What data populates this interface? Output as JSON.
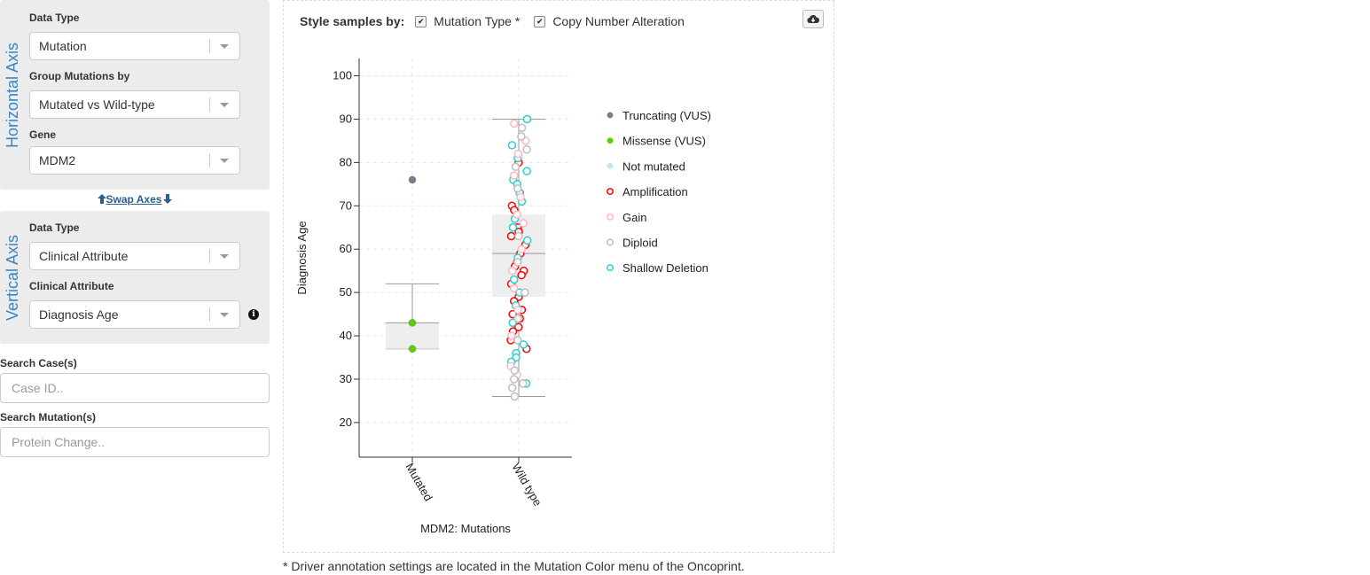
{
  "horizontal_axis": {
    "title": "Horizontal Axis",
    "data_type_label": "Data Type",
    "data_type_value": "Mutation",
    "group_label": "Group Mutations by",
    "group_value": "Mutated vs Wild-type",
    "gene_label": "Gene",
    "gene_value": "MDM2"
  },
  "swap_axes": "Swap Axes",
  "vertical_axis": {
    "title": "Vertical Axis",
    "data_type_label": "Data Type",
    "data_type_value": "Clinical Attribute",
    "attribute_label": "Clinical Attribute",
    "attribute_value": "Diagnosis Age",
    "info_icon": "info-circle-icon"
  },
  "search_cases": {
    "label": "Search Case(s)",
    "placeholder": "Case ID.."
  },
  "search_mutations": {
    "label": "Search Mutation(s)",
    "placeholder": "Protein Change.."
  },
  "style_bar": {
    "label": "Style samples by:",
    "options": [
      {
        "label": "Mutation Type *",
        "checked": true
      },
      {
        "label": "Copy Number Alteration",
        "checked": true
      }
    ]
  },
  "download_icon": "cloud-download-icon",
  "footnote": "* Driver annotation settings are located in the Mutation Color menu of the Oncoprint.",
  "colors": {
    "accent": "#3786c2",
    "link": "#2a5f8f"
  },
  "legend": [
    {
      "label": "Truncating (VUS)",
      "fill": "#708090",
      "stroke": "#708090",
      "filled": true
    },
    {
      "label": "Missense (VUS)",
      "fill": "#53d400",
      "stroke": "#53d400",
      "filled": true
    },
    {
      "label": "Not mutated",
      "fill": "#c1e5f5",
      "stroke": "#c1e5f5",
      "filled": true
    },
    {
      "label": "Amplification",
      "fill": "#ffffff",
      "stroke": "#ff0000",
      "filled": false
    },
    {
      "label": "Gain",
      "fill": "#ffffff",
      "stroke": "#ffb6c1",
      "filled": false
    },
    {
      "label": "Diploid",
      "fill": "#ffffff",
      "stroke": "#bebebe",
      "filled": false
    },
    {
      "label": "Shallow Deletion",
      "fill": "#ffffff",
      "stroke": "#2aced4",
      "filled": false
    }
  ],
  "chart_data": {
    "type": "box",
    "title": "",
    "xlabel": "MDM2: Mutations",
    "ylabel": "Diagnosis Age",
    "categories": [
      "Mutated",
      "Wild type"
    ],
    "ylim": [
      12,
      104
    ],
    "yticks": [
      20,
      30,
      40,
      50,
      60,
      70,
      80,
      90,
      100
    ],
    "grid": true,
    "legend_position": "right",
    "boxes": [
      {
        "category": "Mutated",
        "min": 37,
        "q1": 37,
        "median": 43,
        "q3": 43,
        "max": 52
      },
      {
        "category": "Wild type",
        "min": 26,
        "q1": 49,
        "median": 59,
        "q3": 68,
        "max": 90
      }
    ],
    "points": [
      {
        "category": "Mutated",
        "y": 76,
        "type": "Truncating (VUS)"
      },
      {
        "category": "Mutated",
        "y": 43,
        "type": "Missense (VUS)"
      },
      {
        "category": "Mutated",
        "y": 37,
        "type": "Missense (VUS)"
      },
      {
        "category": "Wild type",
        "y": 80,
        "type": "Amplification"
      },
      {
        "category": "Wild type",
        "y": 73,
        "type": "Amplification"
      },
      {
        "category": "Wild type",
        "y": 70,
        "type": "Amplification"
      },
      {
        "category": "Wild type",
        "y": 69,
        "type": "Amplification"
      },
      {
        "category": "Wild type",
        "y": 65,
        "type": "Amplification"
      },
      {
        "category": "Wild type",
        "y": 64,
        "type": "Amplification"
      },
      {
        "category": "Wild type",
        "y": 63,
        "type": "Amplification"
      },
      {
        "category": "Wild type",
        "y": 61,
        "type": "Amplification"
      },
      {
        "category": "Wild type",
        "y": 59,
        "type": "Amplification"
      },
      {
        "category": "Wild type",
        "y": 57,
        "type": "Amplification"
      },
      {
        "category": "Wild type",
        "y": 56,
        "type": "Amplification"
      },
      {
        "category": "Wild type",
        "y": 55,
        "type": "Amplification"
      },
      {
        "category": "Wild type",
        "y": 54,
        "type": "Amplification"
      },
      {
        "category": "Wild type",
        "y": 52,
        "type": "Amplification"
      },
      {
        "category": "Wild type",
        "y": 49,
        "type": "Amplification"
      },
      {
        "category": "Wild type",
        "y": 48,
        "type": "Amplification"
      },
      {
        "category": "Wild type",
        "y": 46,
        "type": "Amplification"
      },
      {
        "category": "Wild type",
        "y": 45,
        "type": "Amplification"
      },
      {
        "category": "Wild type",
        "y": 44,
        "type": "Amplification"
      },
      {
        "category": "Wild type",
        "y": 42,
        "type": "Amplification"
      },
      {
        "category": "Wild type",
        "y": 41,
        "type": "Amplification"
      },
      {
        "category": "Wild type",
        "y": 39,
        "type": "Amplification"
      },
      {
        "category": "Wild type",
        "y": 37,
        "type": "Amplification"
      },
      {
        "category": "Wild type",
        "y": 90,
        "type": "Shallow Deletion"
      },
      {
        "category": "Wild type",
        "y": 84,
        "type": "Shallow Deletion"
      },
      {
        "category": "Wild type",
        "y": 81,
        "type": "Shallow Deletion"
      },
      {
        "category": "Wild type",
        "y": 78,
        "type": "Shallow Deletion"
      },
      {
        "category": "Wild type",
        "y": 76,
        "type": "Shallow Deletion"
      },
      {
        "category": "Wild type",
        "y": 75,
        "type": "Shallow Deletion"
      },
      {
        "category": "Wild type",
        "y": 73,
        "type": "Shallow Deletion"
      },
      {
        "category": "Wild type",
        "y": 71,
        "type": "Shallow Deletion"
      },
      {
        "category": "Wild type",
        "y": 67,
        "type": "Shallow Deletion"
      },
      {
        "category": "Wild type",
        "y": 65,
        "type": "Shallow Deletion"
      },
      {
        "category": "Wild type",
        "y": 62,
        "type": "Shallow Deletion"
      },
      {
        "category": "Wild type",
        "y": 58,
        "type": "Shallow Deletion"
      },
      {
        "category": "Wild type",
        "y": 53,
        "type": "Shallow Deletion"
      },
      {
        "category": "Wild type",
        "y": 50,
        "type": "Shallow Deletion"
      },
      {
        "category": "Wild type",
        "y": 47,
        "type": "Shallow Deletion"
      },
      {
        "category": "Wild type",
        "y": 43,
        "type": "Shallow Deletion"
      },
      {
        "category": "Wild type",
        "y": 38,
        "type": "Shallow Deletion"
      },
      {
        "category": "Wild type",
        "y": 36,
        "type": "Shallow Deletion"
      },
      {
        "category": "Wild type",
        "y": 35,
        "type": "Shallow Deletion"
      },
      {
        "category": "Wild type",
        "y": 34,
        "type": "Shallow Deletion"
      },
      {
        "category": "Wild type",
        "y": 29,
        "type": "Shallow Deletion"
      },
      {
        "category": "Wild type",
        "y": 89,
        "type": "Gain"
      },
      {
        "category": "Wild type",
        "y": 85,
        "type": "Gain"
      },
      {
        "category": "Wild type",
        "y": 82,
        "type": "Gain"
      },
      {
        "category": "Wild type",
        "y": 77,
        "type": "Gain"
      },
      {
        "category": "Wild type",
        "y": 72,
        "type": "Gain"
      },
      {
        "category": "Wild type",
        "y": 68,
        "type": "Gain"
      },
      {
        "category": "Wild type",
        "y": 66,
        "type": "Gain"
      },
      {
        "category": "Wild type",
        "y": 60,
        "type": "Gain"
      },
      {
        "category": "Wild type",
        "y": 55,
        "type": "Gain"
      },
      {
        "category": "Wild type",
        "y": 51,
        "type": "Gain"
      },
      {
        "category": "Wild type",
        "y": 46,
        "type": "Gain"
      },
      {
        "category": "Wild type",
        "y": 40,
        "type": "Gain"
      },
      {
        "category": "Wild type",
        "y": 33,
        "type": "Gain"
      },
      {
        "category": "Wild type",
        "y": 31,
        "type": "Gain"
      },
      {
        "category": "Wild type",
        "y": 88,
        "type": "Diploid"
      },
      {
        "category": "Wild type",
        "y": 86,
        "type": "Diploid"
      },
      {
        "category": "Wild type",
        "y": 83,
        "type": "Diploid"
      },
      {
        "category": "Wild type",
        "y": 79,
        "type": "Diploid"
      },
      {
        "category": "Wild type",
        "y": 74,
        "type": "Diploid"
      },
      {
        "category": "Wild type",
        "y": 63,
        "type": "Diploid"
      },
      {
        "category": "Wild type",
        "y": 57,
        "type": "Diploid"
      },
      {
        "category": "Wild type",
        "y": 50,
        "type": "Diploid"
      },
      {
        "category": "Wild type",
        "y": 44,
        "type": "Diploid"
      },
      {
        "category": "Wild type",
        "y": 39,
        "type": "Diploid"
      },
      {
        "category": "Wild type",
        "y": 32,
        "type": "Diploid"
      },
      {
        "category": "Wild type",
        "y": 30,
        "type": "Diploid"
      },
      {
        "category": "Wild type",
        "y": 29,
        "type": "Diploid"
      },
      {
        "category": "Wild type",
        "y": 28,
        "type": "Diploid"
      },
      {
        "category": "Wild type",
        "y": 26,
        "type": "Diploid"
      }
    ]
  }
}
